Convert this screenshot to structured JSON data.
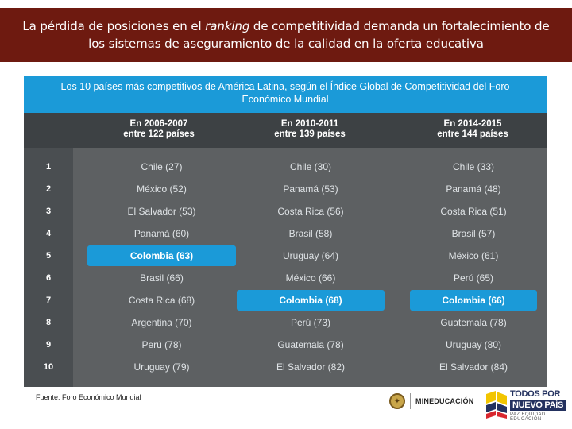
{
  "header": {
    "title_line1_before": "La pérdida de posiciones en el ",
    "title_line1_italic": "ranking",
    "title_line1_after": " de competitividad demanda un fortalecimiento de",
    "title_line2": "los sistemas de aseguramiento de la calidad en la oferta educativa"
  },
  "subtitle": {
    "line1": "Los 10 países más competitivos de América Latina, según el Índice Global de Competitividad del Foro",
    "line2": "Económico Mundial"
  },
  "table": {
    "columns": [
      {
        "line1": "En 2006-2007",
        "line2": "entre 122 países"
      },
      {
        "line1": "En 2010-2011",
        "line2": "entre 139 países"
      },
      {
        "line1": "En 2014-2015",
        "line2": "entre 144 países"
      }
    ],
    "rows": [
      {
        "rank": "1",
        "c1": "Chile (27)",
        "c2": "Chile (30)",
        "c3": "Chile (33)"
      },
      {
        "rank": "2",
        "c1": "México (52)",
        "c2": "Panamá (53)",
        "c3": "Panamá (48)"
      },
      {
        "rank": "3",
        "c1": "El Salvador (53)",
        "c2": "Costa Rica (56)",
        "c3": "Costa Rica (51)"
      },
      {
        "rank": "4",
        "c1": "Panamá (60)",
        "c2": "Brasil (58)",
        "c3": "Brasil (57)"
      },
      {
        "rank": "5",
        "c1": "Colombia (63)",
        "c2": "Uruguay (64)",
        "c3": "México (61)"
      },
      {
        "rank": "6",
        "c1": "Brasil (66)",
        "c2": "México (66)",
        "c3": "Perú (65)"
      },
      {
        "rank": "7",
        "c1": "Costa Rica (68)",
        "c2": "Colombia (68)",
        "c3": "Colombia (66)"
      },
      {
        "rank": "8",
        "c1": "Argentina (70)",
        "c2": "Perú (73)",
        "c3": "Guatemala (78)"
      },
      {
        "rank": "9",
        "c1": "Perú (78)",
        "c2": "Guatemala (78)",
        "c3": "Uruguay (80)"
      },
      {
        "rank": "10",
        "c1": "Uruguay (79)",
        "c2": "El Salvador (82)",
        "c3": "El Salvador (84)"
      }
    ]
  },
  "footer": {
    "source": "Fuente: Foro Económico Mundial",
    "ministry_logo_text": "MINEDUCACIÓN",
    "campaign_line1": "TODOS POR UN",
    "campaign_line2": "NUEVO PAÍS",
    "campaign_line3": "PAZ  EQUIDAD  EDUCACIÓN"
  },
  "colors": {
    "title_bg": "#6e1a10",
    "subtitle_bg": "#1b9ad8",
    "table_bg": "#5d6062",
    "header_bg": "#3d4144",
    "highlight": "#1b9ad8"
  }
}
